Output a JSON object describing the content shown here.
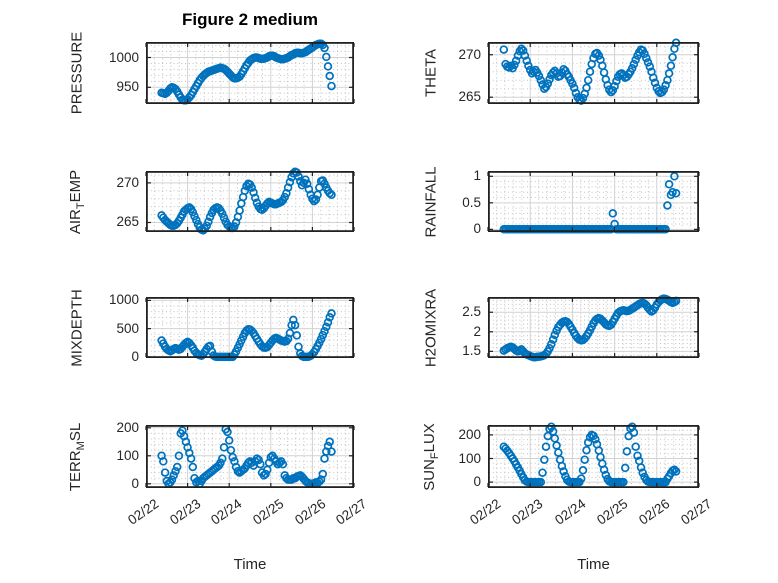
{
  "figure": {
    "title": "Figure 2 medium",
    "xlabel": "Time",
    "marker_color": "#0072BD",
    "axis_color": "#212121",
    "text_color": "#262626",
    "background": "#ffffff"
  },
  "chart_data": {
    "type": "scatter",
    "layout_grid": "4 rows x 2 columns",
    "x_tick_labels": [
      "02/22",
      "02/23",
      "02/24",
      "02/25",
      "02/26",
      "02/27"
    ],
    "x_range_days": [
      0,
      5
    ],
    "t0": 0.375,
    "dt": 0.0416667,
    "marker": "open-circle",
    "plots": [
      {
        "name": "PRESSURE",
        "row": 0,
        "col": 0,
        "label_parts": [
          {
            "text": "PRESSURE",
            "sub": false
          }
        ],
        "ylim": [
          922,
          1026
        ],
        "yticks": [
          950,
          1000
        ],
        "ytick_labels": [
          "950",
          "1000"
        ],
        "yminor": 10,
        "values": [
          941,
          940,
          939,
          941,
          944,
          948,
          950,
          949,
          947,
          943,
          938,
          933,
          929,
          928,
          928,
          930,
          933,
          937,
          942,
          947,
          952,
          957,
          962,
          966,
          969,
          972,
          974,
          976,
          977,
          978,
          979,
          980,
          981,
          982,
          983,
          982,
          981,
          979,
          976,
          973,
          970,
          967,
          965,
          965,
          966,
          968,
          972,
          977,
          982,
          987,
          991,
          995,
          997,
          999,
          1000,
          1000,
          999,
          998,
          998,
          998,
          999,
          1000,
          1002,
          1003,
          1003,
          1002,
          1000,
          999,
          998,
          997,
          997,
          998,
          999,
          1000,
          1002,
          1004,
          1005,
          1007,
          1008,
          1008,
          1007,
          1007,
          1008,
          1009,
          1011,
          1013,
          1015,
          1017,
          1019,
          1021,
          1022,
          1023,
          1023,
          1021,
          1016,
          1001,
          985,
          969,
          952
        ]
      },
      {
        "name": "THETA",
        "row": 0,
        "col": 1,
        "label_parts": [
          {
            "text": "THETA",
            "sub": false
          }
        ],
        "ylim": [
          264.2,
          271.5
        ],
        "yticks": [
          265,
          270
        ],
        "ytick_labels": [
          "265",
          "270"
        ],
        "yminor": 1,
        "values": [
          270.6,
          268.9,
          268.6,
          268.5,
          268.7,
          268.4,
          268.8,
          269.3,
          269.9,
          270.4,
          270.7,
          270.5,
          269.9,
          269.3,
          268.7,
          268.2,
          267.8,
          268.0,
          268.2,
          267.9,
          267.5,
          267.0,
          266.5,
          266.0,
          266.2,
          266.6,
          267.1,
          267.6,
          267.9,
          268.1,
          267.8,
          267.4,
          267.5,
          267.9,
          268.3,
          268.1,
          267.7,
          267.4,
          267.0,
          266.6,
          266.1,
          265.5,
          265.0,
          264.7,
          264.6,
          264.9,
          265.4,
          266.1,
          267.0,
          268.0,
          268.9,
          269.6,
          270.1,
          270.2,
          269.9,
          269.4,
          268.7,
          267.9,
          267.1,
          266.4,
          265.9,
          265.6,
          265.8,
          266.3,
          266.9,
          267.4,
          267.7,
          267.8,
          267.6,
          267.3,
          267.4,
          267.7,
          268.0,
          268.4,
          268.9,
          269.4,
          269.9,
          270.3,
          270.6,
          270.5,
          270.1,
          269.6,
          269.1,
          268.6,
          268.0,
          267.3,
          266.7,
          266.1,
          265.7,
          265.5,
          265.6,
          265.9,
          266.4,
          267.0,
          267.8,
          268.7,
          269.7,
          270.7,
          271.4
        ]
      },
      {
        "name": "AIR_TEMP",
        "row": 1,
        "col": 0,
        "label_parts": [
          {
            "text": "AIR",
            "sub": false
          },
          {
            "text": "T",
            "sub": true
          },
          {
            "text": "EMP",
            "sub": false
          }
        ],
        "ylim": [
          263.8,
          271.5
        ],
        "yticks": [
          265,
          270
        ],
        "ytick_labels": [
          "265",
          "270"
        ],
        "yminor": 1,
        "values": [
          265.9,
          265.6,
          265.3,
          265.1,
          264.9,
          264.7,
          264.6,
          264.6,
          264.7,
          264.9,
          265.2,
          265.6,
          266.0,
          266.4,
          266.6,
          266.8,
          266.9,
          266.7,
          266.3,
          265.8,
          265.3,
          264.8,
          264.4,
          264.1,
          264.0,
          264.2,
          264.6,
          265.1,
          265.7,
          266.2,
          266.6,
          266.8,
          266.9,
          266.8,
          266.5,
          266.1,
          265.6,
          265.1,
          264.7,
          264.5,
          264.3,
          264.3,
          264.5,
          265.0,
          265.7,
          266.5,
          267.4,
          268.2,
          269.0,
          269.6,
          269.9,
          269.8,
          269.4,
          268.8,
          268.1,
          267.5,
          267.0,
          266.7,
          266.6,
          266.8,
          267.1,
          267.4,
          267.6,
          267.5,
          267.4,
          267.3,
          267.3,
          267.4,
          267.5,
          267.6,
          267.8,
          268.2,
          268.7,
          269.4,
          270.1,
          270.7,
          271.2,
          271.4,
          271.3,
          270.8,
          270.2,
          269.7,
          270.0,
          270.4,
          269.9,
          269.2,
          268.5,
          268.0,
          267.7,
          267.9,
          268.5,
          269.4,
          270.2,
          270.3,
          269.9,
          269.4,
          269.0,
          268.7,
          268.5
        ]
      },
      {
        "name": "RAINFALL",
        "row": 1,
        "col": 1,
        "label_parts": [
          {
            "text": "RAINFALL",
            "sub": false
          }
        ],
        "ylim": [
          -0.05,
          1.1
        ],
        "yticks": [
          0,
          0.5,
          1
        ],
        "ytick_labels": [
          "0",
          "0.5",
          "1"
        ],
        "yminor": 0.1,
        "values": [
          0,
          0,
          0,
          0,
          0,
          0,
          0,
          0,
          0,
          0,
          0,
          0,
          0,
          0,
          0,
          0,
          0,
          0,
          0,
          0,
          0,
          0,
          0,
          0,
          0,
          0,
          0,
          0,
          0,
          0,
          0,
          0,
          0,
          0,
          0,
          0,
          0,
          0,
          0,
          0,
          0,
          0,
          0,
          0,
          0,
          0,
          0,
          0,
          0,
          0,
          0,
          0,
          0,
          0,
          0,
          0,
          0,
          0,
          0,
          0,
          0,
          0,
          0.3,
          0.1,
          0,
          0,
          0,
          0,
          0,
          0,
          0,
          0,
          0,
          0,
          0,
          0,
          0,
          0,
          0,
          0,
          0,
          0,
          0,
          0,
          0,
          0,
          0,
          0,
          0,
          0,
          0,
          0,
          0,
          0.45,
          0.85,
          0.65,
          0.7,
          1.0,
          0.68
        ]
      },
      {
        "name": "MIXDEPTH",
        "row": 2,
        "col": 0,
        "label_parts": [
          {
            "text": "MIXDEPTH",
            "sub": false
          }
        ],
        "ylim": [
          -20,
          1060
        ],
        "yticks": [
          0,
          500,
          1000
        ],
        "ytick_labels": [
          "0",
          "500",
          "1000"
        ],
        "yminor": 100,
        "values": [
          290,
          235,
          180,
          140,
          115,
          100,
          115,
          140,
          155,
          145,
          125,
          140,
          175,
          215,
          245,
          265,
          245,
          205,
          160,
          110,
          70,
          45,
          30,
          20,
          45,
          90,
          140,
          180,
          195,
          90,
          25,
          5,
          0,
          0,
          0,
          0,
          0,
          0,
          0,
          0,
          0,
          0,
          40,
          95,
          160,
          225,
          290,
          355,
          420,
          465,
          490,
          485,
          460,
          420,
          370,
          320,
          270,
          225,
          185,
          165,
          160,
          175,
          210,
          250,
          290,
          320,
          335,
          325,
          305,
          290,
          280,
          270,
          280,
          320,
          420,
          560,
          655,
          560,
          380,
          180,
          60,
          15,
          0,
          0,
          0,
          5,
          20,
          45,
          85,
          135,
          190,
          250,
          315,
          385,
          455,
          530,
          610,
          700,
          770
        ]
      },
      {
        "name": "H2OMIXRA",
        "row": 2,
        "col": 1,
        "label_parts": [
          {
            "text": "H2OMIXRA",
            "sub": false
          }
        ],
        "ylim": [
          1.33,
          2.89
        ],
        "yticks": [
          1.5,
          2,
          2.5
        ],
        "ytick_labels": [
          "1.5",
          "2",
          "2.5"
        ],
        "yminor": 0.1,
        "values": [
          1.52,
          1.55,
          1.58,
          1.6,
          1.62,
          1.6,
          1.56,
          1.52,
          1.5,
          1.52,
          1.55,
          1.5,
          1.45,
          1.42,
          1.4,
          1.38,
          1.36,
          1.35,
          1.35,
          1.36,
          1.36,
          1.37,
          1.38,
          1.4,
          1.44,
          1.5,
          1.58,
          1.68,
          1.8,
          1.92,
          2.03,
          2.12,
          2.18,
          2.23,
          2.26,
          2.27,
          2.25,
          2.2,
          2.13,
          2.05,
          1.97,
          1.9,
          1.84,
          1.8,
          1.78,
          1.79,
          1.83,
          1.89,
          1.96,
          2.04,
          2.13,
          2.22,
          2.29,
          2.33,
          2.35,
          2.33,
          2.29,
          2.24,
          2.19,
          2.16,
          2.15,
          2.18,
          2.25,
          2.33,
          2.41,
          2.48,
          2.52,
          2.54,
          2.55,
          2.54,
          2.53,
          2.54,
          2.56,
          2.59,
          2.62,
          2.65,
          2.68,
          2.71,
          2.73,
          2.74,
          2.72,
          2.68,
          2.62,
          2.56,
          2.52,
          2.55,
          2.62,
          2.7,
          2.76,
          2.8,
          2.83,
          2.85,
          2.84,
          2.82,
          2.79,
          2.76,
          2.74,
          2.76,
          2.79
        ]
      },
      {
        "name": "TERR_MSL",
        "row": 3,
        "col": 0,
        "label_parts": [
          {
            "text": "TERR",
            "sub": false
          },
          {
            "text": "M",
            "sub": true
          },
          {
            "text": "SL",
            "sub": false
          }
        ],
        "ylim": [
          -15,
          210
        ],
        "yticks": [
          0,
          100,
          200
        ],
        "ytick_labels": [
          "0",
          "100",
          "200"
        ],
        "yminor": 20,
        "values": [
          100,
          80,
          40,
          10,
          0,
          5,
          15,
          30,
          45,
          60,
          100,
          180,
          190,
          170,
          150,
          130,
          110,
          90,
          60,
          20,
          5,
          10,
          0,
          10,
          20,
          25,
          30,
          35,
          40,
          45,
          50,
          55,
          60,
          65,
          75,
          90,
          130,
          195,
          185,
          155,
          120,
          95,
          80,
          60,
          45,
          40,
          45,
          50,
          55,
          65,
          75,
          80,
          75,
          65,
          80,
          90,
          85,
          70,
          40,
          30,
          35,
          50,
          75,
          95,
          100,
          90,
          80,
          70,
          75,
          80,
          70,
          30,
          20,
          15,
          15,
          15,
          20,
          20,
          25,
          28,
          30,
          25,
          18,
          10,
          5,
          2,
          0,
          0,
          2,
          5,
          3,
          8,
          15,
          35,
          90,
          115,
          135,
          150,
          115
        ]
      },
      {
        "name": "SUN_FLUX",
        "row": 3,
        "col": 1,
        "label_parts": [
          {
            "text": "SUN",
            "sub": false
          },
          {
            "text": "F",
            "sub": true
          },
          {
            "text": "LUX",
            "sub": false
          }
        ],
        "ylim": [
          -25,
          242
        ],
        "yticks": [
          0,
          100,
          200
        ],
        "ytick_labels": [
          "0",
          "100",
          "200"
        ],
        "yminor": 20,
        "values": [
          150,
          142,
          133,
          123,
          112,
          100,
          88,
          75,
          62,
          48,
          34,
          20,
          8,
          2,
          0,
          0,
          0,
          0,
          0,
          0,
          0,
          0,
          40,
          95,
          150,
          195,
          225,
          235,
          215,
          185,
          155,
          125,
          95,
          68,
          45,
          25,
          10,
          2,
          0,
          0,
          0,
          0,
          0,
          0,
          15,
          50,
          95,
          135,
          168,
          190,
          200,
          196,
          182,
          160,
          134,
          106,
          78,
          52,
          30,
          13,
          3,
          0,
          0,
          0,
          0,
          0,
          0,
          0,
          0,
          60,
          130,
          195,
          228,
          235,
          210,
          150,
          112,
          90,
          62,
          40,
          22,
          9,
          2,
          0,
          0,
          0,
          0,
          0,
          0,
          0,
          0,
          0,
          0,
          14,
          25,
          38,
          48,
          52,
          45
        ]
      }
    ]
  }
}
